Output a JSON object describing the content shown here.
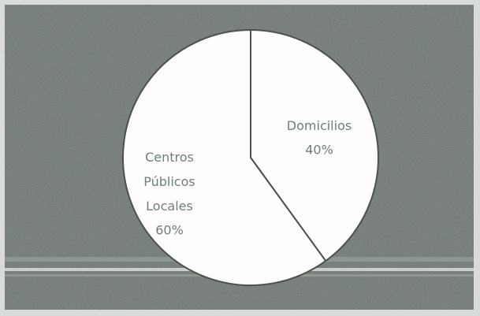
{
  "chart_data": {
    "type": "pie",
    "categories": [
      "Domicilios",
      "Centros Públicos Locales"
    ],
    "values": [
      40,
      60
    ],
    "value_labels": [
      "40%",
      "60%"
    ],
    "colors": [
      "#fdfdfd",
      "#fdfdfd"
    ]
  }
}
